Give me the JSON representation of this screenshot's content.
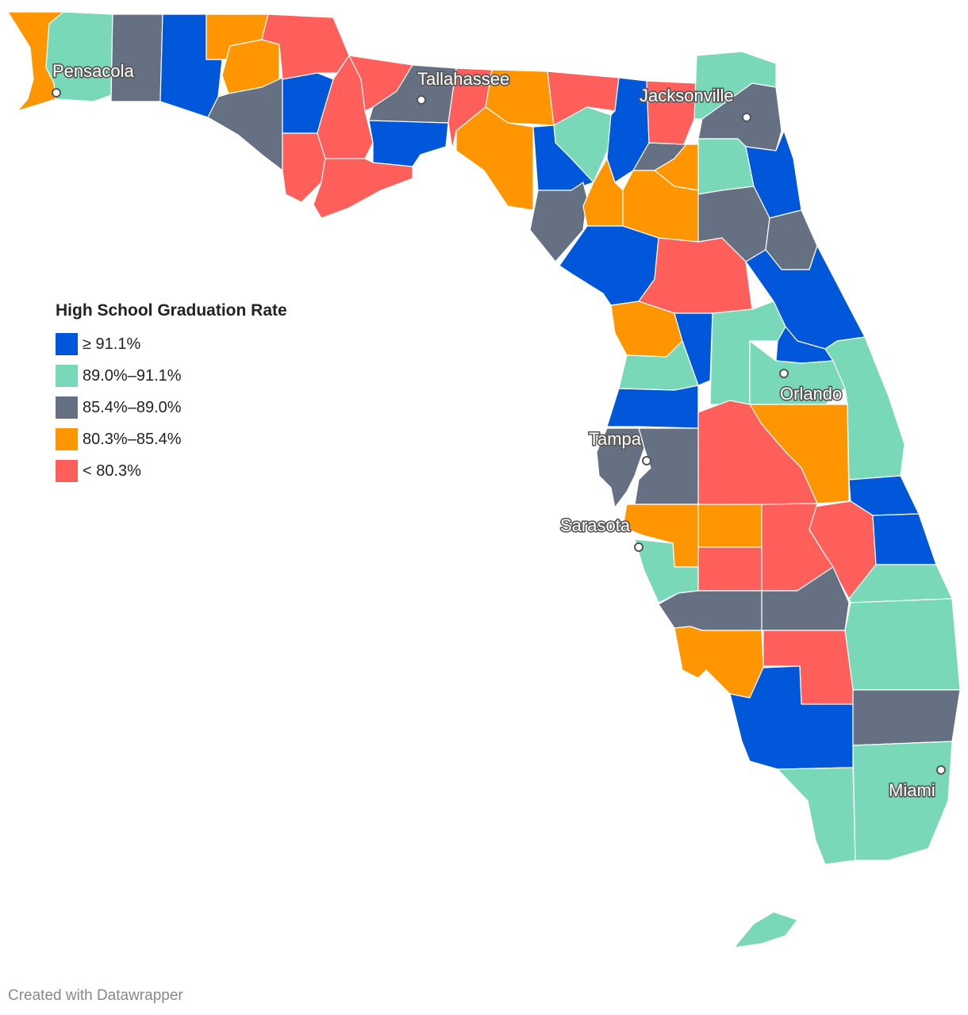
{
  "legend": {
    "title": "High School Graduation Rate",
    "bins": [
      {
        "label": "≥ 91.1%",
        "color": "#0057d9"
      },
      {
        "label": "89.0%–91.1%",
        "color": "#78d8b8"
      },
      {
        "label": "85.4%–89.0%",
        "color": "#667083"
      },
      {
        "label": "80.3%–85.4%",
        "color": "#ff9500"
      },
      {
        "label": "< 80.3%",
        "color": "#ff5f5a"
      }
    ]
  },
  "cities": [
    "Pensacola",
    "Tallahassee",
    "Jacksonville",
    "Orlando",
    "Tampa",
    "Sarasota",
    "Miami"
  ],
  "credit": "Created with Datawrapper"
}
